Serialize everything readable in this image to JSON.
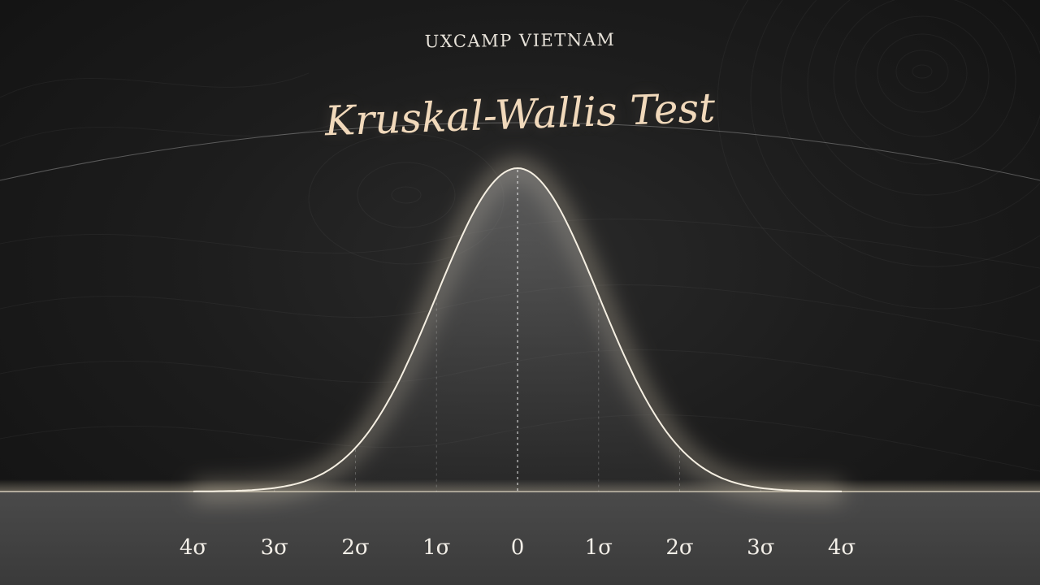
{
  "header": {
    "eyebrow": "UXCAMP VIETNAM",
    "title": "Kruskal-Wallis Test"
  },
  "colors": {
    "title": "#f1d9bb",
    "curve": "#f5efe2",
    "glow": "#e9dcc0",
    "background": "#1d1d1d",
    "floor": "#4d4d4d"
  },
  "chart_data": {
    "type": "area",
    "distribution": "normal",
    "mean": 0,
    "sd": 1,
    "xlim": [
      -4,
      4
    ],
    "ylim": [
      0,
      0.4
    ],
    "grid": false,
    "ticks": [
      {
        "x": -4,
        "label": "4σ"
      },
      {
        "x": -3,
        "label": "3σ"
      },
      {
        "x": -2,
        "label": "2σ"
      },
      {
        "x": -1,
        "label": "1σ"
      },
      {
        "x": 0,
        "label": "0"
      },
      {
        "x": 1,
        "label": "1σ"
      },
      {
        "x": 2,
        "label": "2σ"
      },
      {
        "x": 3,
        "label": "3σ"
      },
      {
        "x": 4,
        "label": "4σ"
      }
    ],
    "sigma_lines": [
      -3,
      -2,
      -1,
      0,
      1,
      2,
      3
    ]
  }
}
